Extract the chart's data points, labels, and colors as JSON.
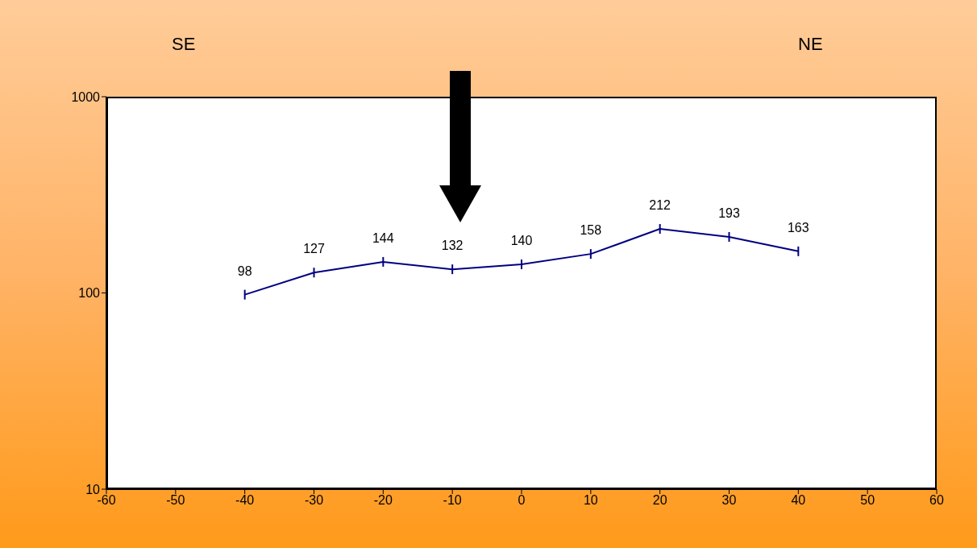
{
  "chart_data": {
    "type": "line",
    "x": [
      -40,
      -30,
      -20,
      -10,
      0,
      10,
      20,
      30,
      40
    ],
    "series": [
      {
        "color": "#000080",
        "values": [
          98,
          127,
          144,
          132,
          140,
          158,
          212,
          193,
          163
        ]
      }
    ],
    "xlim": [
      -60,
      60
    ],
    "xticks": [
      -60,
      -50,
      -40,
      -30,
      -20,
      -10,
      0,
      10,
      20,
      30,
      40,
      50,
      60
    ],
    "ylim": [
      10,
      1000
    ],
    "yticks": [
      10,
      100,
      1000
    ],
    "log": true,
    "data_labels": true,
    "grid": false,
    "legend": false,
    "annotations": [
      "SE",
      "NE"
    ]
  }
}
